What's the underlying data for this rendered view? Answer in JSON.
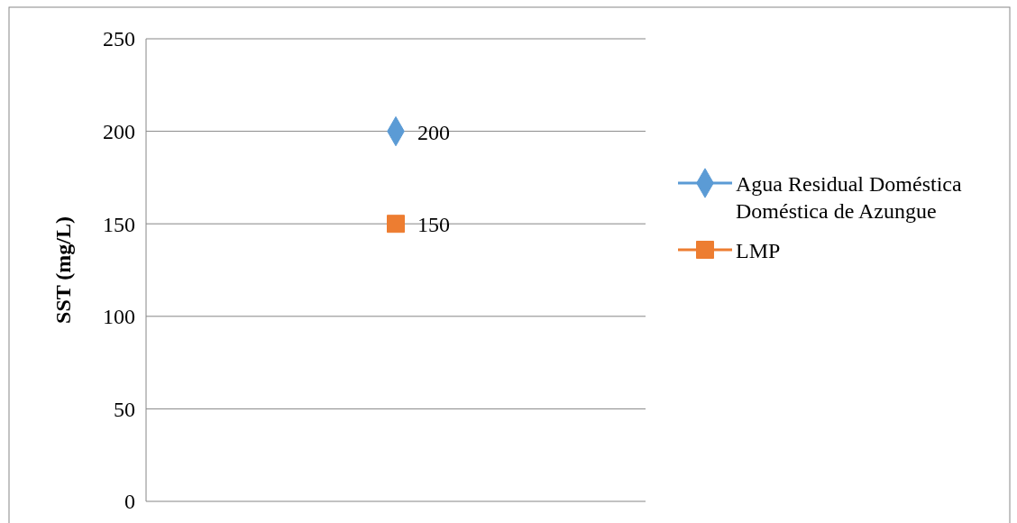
{
  "chart_data": {
    "type": "line",
    "ylabel": "SST (mg/L)",
    "categories": [
      null
    ],
    "series": [
      {
        "name": "Agua Residual Doméstica Doméstica de Azungue",
        "color": "#5b9bd5",
        "values": [
          200
        ],
        "marker": "diamond"
      },
      {
        "name": "LMP",
        "color": "#ed7d31",
        "values": [
          150
        ],
        "marker": "square"
      }
    ],
    "ylim": [
      0,
      250
    ],
    "yticks": [
      0,
      50,
      100,
      150,
      200,
      250
    ],
    "grid": "y",
    "legend": "right",
    "data_labels": true
  }
}
